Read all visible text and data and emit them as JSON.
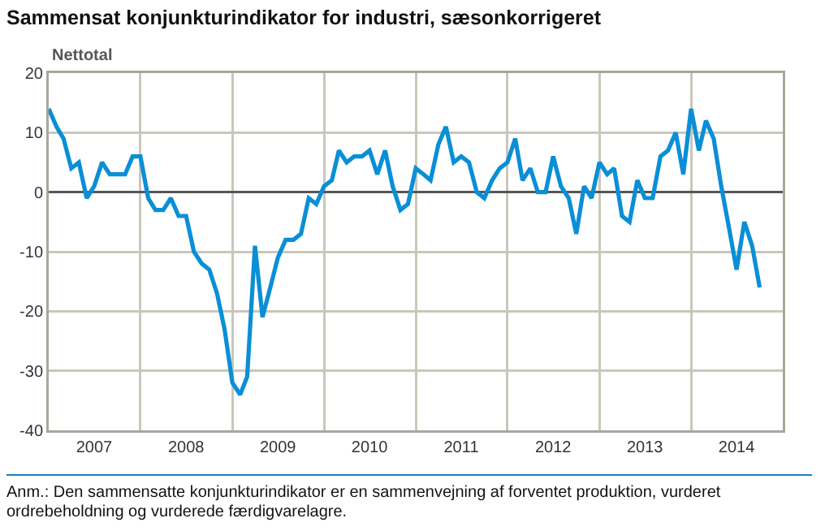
{
  "chart_data": {
    "type": "line",
    "title": "Sammensat konjunkturindikator for industri, sæsonkorrigeret",
    "ylabel": "Nettotal",
    "annotations": [
      "Anm.: Den sammensatte konjunkturindikator er en sammenvejning af forventet produktion, vurderet ordrebeholdning og vurderede færdigvarelagre."
    ],
    "x": [
      "2007-01",
      "2007-02",
      "2007-03",
      "2007-04",
      "2007-05",
      "2007-06",
      "2007-07",
      "2007-08",
      "2007-09",
      "2007-10",
      "2007-11",
      "2007-12",
      "2008-01",
      "2008-02",
      "2008-03",
      "2008-04",
      "2008-05",
      "2008-06",
      "2008-07",
      "2008-08",
      "2008-09",
      "2008-10",
      "2008-11",
      "2008-12",
      "2009-01",
      "2009-02",
      "2009-03",
      "2009-04",
      "2009-05",
      "2009-06",
      "2009-07",
      "2009-08",
      "2009-09",
      "2009-10",
      "2009-11",
      "2009-12",
      "2010-01",
      "2010-02",
      "2010-03",
      "2010-04",
      "2010-05",
      "2010-06",
      "2010-07",
      "2010-08",
      "2010-09",
      "2010-10",
      "2010-11",
      "2010-12",
      "2011-01",
      "2011-02",
      "2011-03",
      "2011-04",
      "2011-05",
      "2011-06",
      "2011-07",
      "2011-08",
      "2011-09",
      "2011-10",
      "2011-11",
      "2011-12",
      "2012-01",
      "2012-02",
      "2012-03",
      "2012-04",
      "2012-05",
      "2012-06",
      "2012-07",
      "2012-08",
      "2012-09",
      "2012-10",
      "2012-11",
      "2012-12",
      "2013-01",
      "2013-02",
      "2013-03",
      "2013-04",
      "2013-05",
      "2013-06",
      "2013-07",
      "2013-08",
      "2013-09",
      "2013-10",
      "2013-11",
      "2013-12",
      "2014-01",
      "2014-02",
      "2014-03",
      "2014-04",
      "2014-05",
      "2014-06",
      "2014-07",
      "2014-08",
      "2014-09",
      "2014-10"
    ],
    "series": [
      {
        "color": "#0a8fd6",
        "values": [
          14,
          11,
          9,
          4,
          5,
          -1,
          1,
          5,
          3,
          3,
          3,
          6,
          6,
          -1,
          -3,
          -3,
          -1,
          -4,
          -4,
          -10,
          -12,
          -13,
          -17,
          -23,
          -32,
          -34,
          -31,
          -9,
          -21,
          -16,
          -11,
          -8,
          -8,
          -7,
          -1,
          -2,
          1,
          2,
          7,
          5,
          6,
          6,
          7,
          3,
          7,
          1,
          -3,
          -2,
          4,
          3,
          2,
          8,
          11,
          5,
          6,
          5,
          0,
          -1,
          2,
          4,
          5,
          9,
          2,
          4,
          0,
          0,
          6,
          1,
          -1,
          -7,
          1,
          -1,
          5,
          3,
          4,
          -4,
          -5,
          2,
          -1,
          -1,
          6,
          7,
          10,
          3,
          14,
          7,
          12,
          9,
          1,
          -6,
          -13,
          -5,
          -9,
          -16
        ]
      }
    ],
    "xlim": [
      "2007-01-01",
      "2015-01-01"
    ],
    "xticks": [
      {
        "value": "2007-01-01",
        "label": null
      },
      {
        "value": "2007-07-01",
        "label": "2007"
      },
      {
        "value": "2008-01-01",
        "label": null
      },
      {
        "value": "2008-07-01",
        "label": "2008"
      },
      {
        "value": "2009-01-01",
        "label": null
      },
      {
        "value": "2009-07-01",
        "label": "2009"
      },
      {
        "value": "2010-01-01",
        "label": null
      },
      {
        "value": "2010-07-01",
        "label": "2010"
      },
      {
        "value": "2011-01-01",
        "label": null
      },
      {
        "value": "2011-07-01",
        "label": "2011"
      },
      {
        "value": "2012-01-01",
        "label": null
      },
      {
        "value": "2012-07-01",
        "label": "2012"
      },
      {
        "value": "2013-01-01",
        "label": null
      },
      {
        "value": "2013-07-01",
        "label": "2013"
      },
      {
        "value": "2014-01-01",
        "label": null
      },
      {
        "value": "2014-07-01",
        "label": "2014"
      },
      {
        "value": "2015-01-01",
        "label": null
      }
    ],
    "ylim": [
      -40,
      20
    ],
    "yticks": [
      -40,
      -30,
      -20,
      -10,
      0,
      10,
      20
    ],
    "grid": true
  }
}
